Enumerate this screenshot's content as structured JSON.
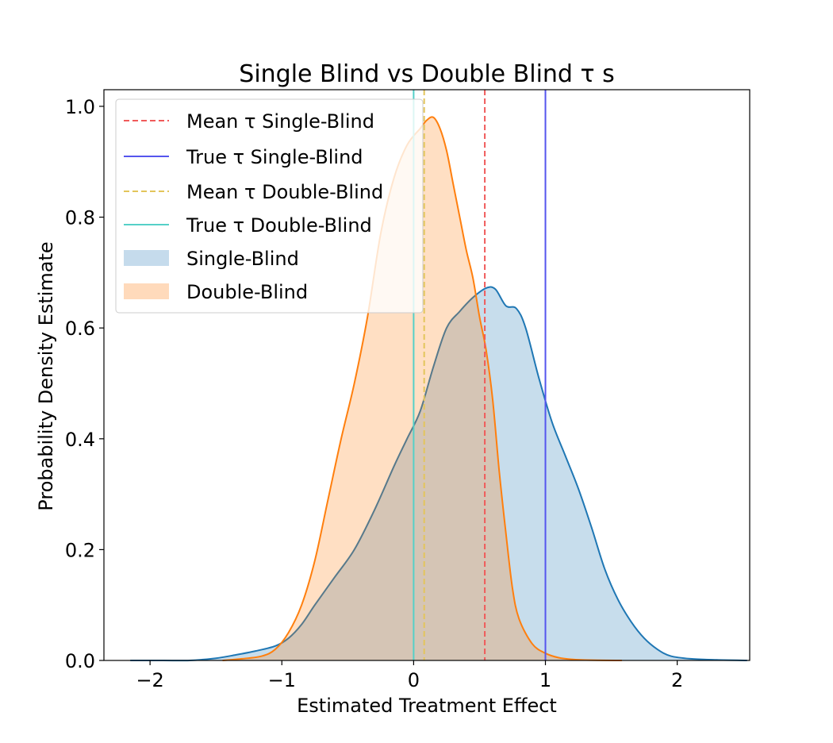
{
  "chart_data": {
    "type": "area",
    "title": "Single Blind vs Double Blind τ s",
    "xlabel": "Estimated Treatment Effect",
    "ylabel": "Probability Density Estimate",
    "xlim": [
      -2.35,
      2.55
    ],
    "ylim": [
      0,
      1.03
    ],
    "xticks": [
      -2,
      -1,
      0,
      1,
      2
    ],
    "yticks": [
      0.0,
      0.2,
      0.4,
      0.6,
      0.8,
      1.0
    ],
    "xtick_labels": [
      "−2",
      "−1",
      "0",
      "1",
      "2"
    ],
    "ytick_labels": [
      "0.0",
      "0.2",
      "0.4",
      "0.6",
      "0.8",
      "1.0"
    ],
    "grid": false,
    "legend_position": "top-left",
    "series": [
      {
        "name": "Single-Blind",
        "line_color": "#1f77b4",
        "fill_color": "#1f77b4",
        "x": [
          -2.15,
          -1.9,
          -1.7,
          -1.5,
          -1.35,
          -1.2,
          -1.05,
          -0.95,
          -0.85,
          -0.75,
          -0.6,
          -0.45,
          -0.3,
          -0.15,
          -0.05,
          0.05,
          0.15,
          0.25,
          0.35,
          0.45,
          0.55,
          0.62,
          0.7,
          0.78,
          0.85,
          0.95,
          1.05,
          1.15,
          1.25,
          1.35,
          1.45,
          1.55,
          1.65,
          1.75,
          1.85,
          1.95,
          2.1,
          2.3,
          2.53
        ],
        "y": [
          0.0,
          0.0,
          0.0,
          0.004,
          0.01,
          0.017,
          0.026,
          0.04,
          0.065,
          0.1,
          0.15,
          0.2,
          0.27,
          0.35,
          0.4,
          0.45,
          0.53,
          0.6,
          0.63,
          0.655,
          0.672,
          0.67,
          0.64,
          0.635,
          0.6,
          0.51,
          0.43,
          0.37,
          0.31,
          0.24,
          0.165,
          0.11,
          0.07,
          0.04,
          0.02,
          0.008,
          0.003,
          0.001,
          0.0
        ]
      },
      {
        "name": "Double-Blind",
        "line_color": "#ff7f0e",
        "fill_color": "#ff7f0e",
        "x": [
          -1.45,
          -1.3,
          -1.15,
          -1.05,
          -0.95,
          -0.85,
          -0.75,
          -0.65,
          -0.55,
          -0.45,
          -0.35,
          -0.25,
          -0.15,
          -0.05,
          0.05,
          0.1,
          0.15,
          0.2,
          0.25,
          0.3,
          0.35,
          0.4,
          0.45,
          0.5,
          0.55,
          0.6,
          0.65,
          0.7,
          0.75,
          0.8,
          0.9,
          1.0,
          1.1,
          1.2,
          1.35,
          1.58
        ],
        "y": [
          0.0,
          0.003,
          0.008,
          0.02,
          0.05,
          0.1,
          0.18,
          0.29,
          0.4,
          0.5,
          0.62,
          0.77,
          0.87,
          0.93,
          0.96,
          0.975,
          0.98,
          0.96,
          0.92,
          0.86,
          0.8,
          0.74,
          0.69,
          0.62,
          0.56,
          0.47,
          0.34,
          0.23,
          0.13,
          0.075,
          0.03,
          0.013,
          0.005,
          0.002,
          0.0005,
          0.0
        ]
      }
    ],
    "vlines": [
      {
        "name": "Mean τ Single-Blind",
        "x": 0.54,
        "color": "#f05a5a",
        "style": "dashed"
      },
      {
        "name": "True τ Single-Blind",
        "x": 1.0,
        "color": "#5555ee",
        "style": "solid"
      },
      {
        "name": "Mean τ Double-Blind",
        "x": 0.08,
        "color": "#e3c55b",
        "style": "dashed"
      },
      {
        "name": "True τ Double-Blind",
        "x": 0.0,
        "color": "#55d0c8",
        "style": "solid"
      }
    ],
    "legend": [
      {
        "label": "Mean τ Single-Blind",
        "kind": "dashed",
        "color": "#f05a5a"
      },
      {
        "label": "True τ Single-Blind",
        "kind": "solid",
        "color": "#5555ee"
      },
      {
        "label": "Mean τ Double-Blind",
        "kind": "dashed",
        "color": "#e3c55b"
      },
      {
        "label": "True τ Double-Blind",
        "kind": "solid",
        "color": "#55d0c8"
      },
      {
        "label": "Single-Blind",
        "kind": "patch",
        "color": "#c5dbec"
      },
      {
        "label": "Double-Blind",
        "kind": "patch",
        "color": "#ffdabb"
      }
    ]
  }
}
